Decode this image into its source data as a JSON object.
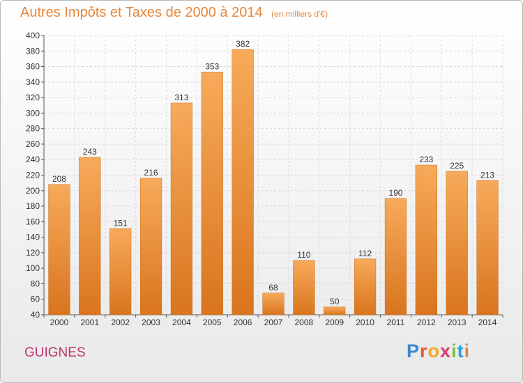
{
  "colors": {
    "bar_top": "#f7aa5a",
    "bar_bottom": "#d9751e",
    "title": "#e8863a",
    "commune": "#c2336e"
  },
  "commune_name": "GUIGNES",
  "logo": {
    "text": "Proxiti",
    "letter_colors": [
      "#3f88cf",
      "#e45a2c",
      "#f5a623",
      "#d83b6a",
      "#7bbf3a",
      "#2a9fd8",
      "#e8863a"
    ]
  },
  "chart_data": {
    "type": "bar",
    "title": "Autres Impôts et Taxes de 2000 à 2014",
    "subtitle": "(en milliers d'€)",
    "xlabel": "",
    "ylabel": "",
    "categories": [
      "2000",
      "2001",
      "2002",
      "2003",
      "2004",
      "2005",
      "2006",
      "2007",
      "2008",
      "2009",
      "2010",
      "2011",
      "2012",
      "2013",
      "2014"
    ],
    "values": [
      208,
      243,
      151,
      216,
      313,
      353,
      382,
      68,
      110,
      50,
      112,
      190,
      233,
      225,
      213
    ],
    "ylim": [
      40,
      400
    ],
    "yticks": [
      40,
      60,
      80,
      100,
      120,
      140,
      160,
      180,
      200,
      220,
      240,
      260,
      280,
      300,
      320,
      340,
      360,
      380,
      400
    ],
    "grid": true,
    "legend": "none"
  }
}
